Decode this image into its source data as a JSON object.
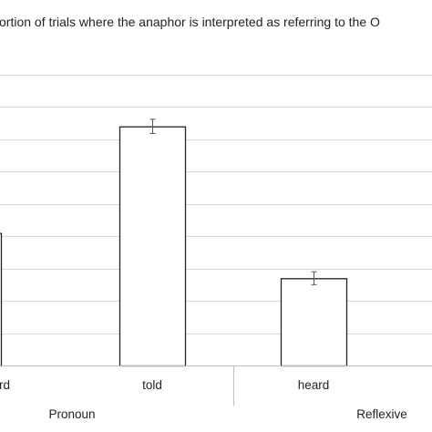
{
  "chart_data": {
    "type": "bar",
    "title": "ortion of trials where the anaphor is interpreted as referring to the O",
    "categories": [
      "rd",
      "told",
      "heard",
      ""
    ],
    "groups": [
      {
        "label": "Pronoun",
        "categories": [
          "rd",
          "told"
        ]
      },
      {
        "label": "Reflexive",
        "categories": [
          "heard",
          ""
        ]
      }
    ],
    "values": [
      0.41,
      0.74,
      0.27,
      null
    ],
    "errors": [
      null,
      0.022,
      0.02,
      null
    ],
    "ylim": [
      0,
      1
    ],
    "gridlines": [
      0.1,
      0.2,
      0.3,
      0.4,
      0.5,
      0.6,
      0.7,
      0.8,
      0.9
    ],
    "grid": true,
    "legend": "none",
    "colors": {
      "bar_fill": "#ffffff",
      "bar_stroke": "#222222",
      "grid": "#d9d9d9",
      "axis": "#bfbfbf"
    }
  }
}
